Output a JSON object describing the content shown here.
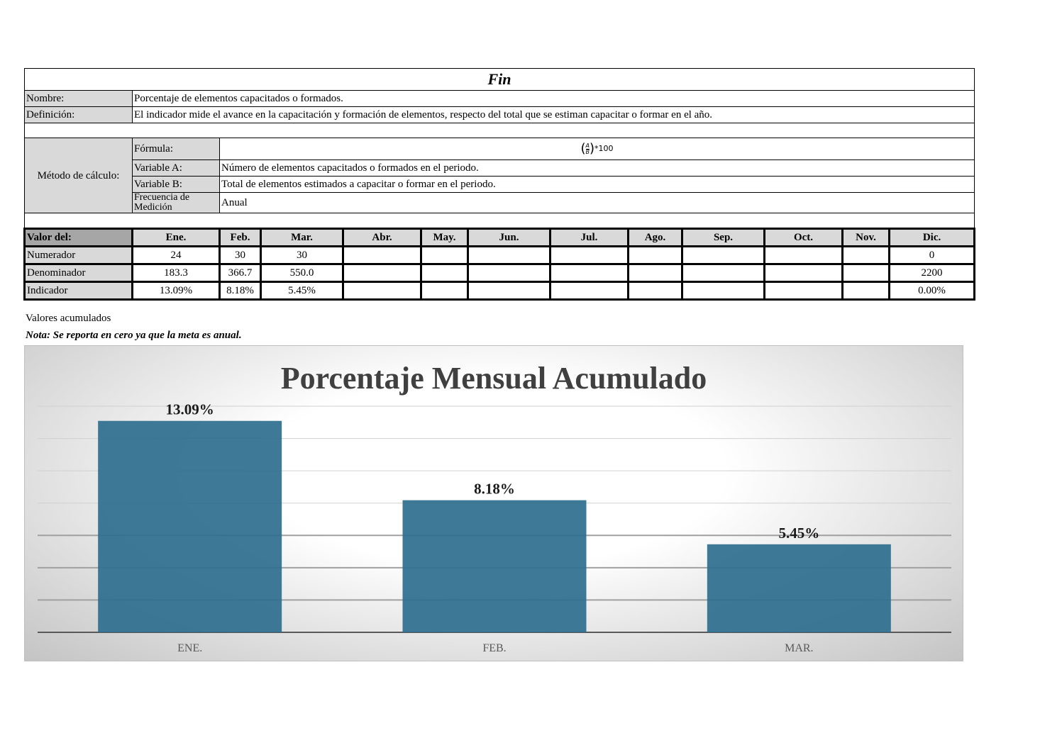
{
  "section_title": "Fin",
  "labels": {
    "nombre": "Nombre:",
    "definicion": "Definición:",
    "metodo": "Método de cálculo:",
    "formula": "Fórmula:",
    "variable_a": "Variable A:",
    "variable_b": "Variable B:",
    "frecuencia": "Frecuencia de Medición",
    "valor_del": "Valor del:"
  },
  "values": {
    "nombre": "Porcentaje de elementos capacitados o formados.",
    "definicion": "El indicador mide el avance en la capacitación y formación de elementos, respecto del total que se estiman capacitar o formar en el año.",
    "formula_num": "A",
    "formula_den": "B",
    "formula_suffix": "*100",
    "variable_a": "Número de elementos capacitados o formados en el periodo.",
    "variable_b": "Total de elementos estimados a capacitar o formar en el periodo.",
    "frecuencia": "Anual"
  },
  "months": [
    "Ene.",
    "Feb.",
    "Mar.",
    "Abr.",
    "May.",
    "Jun.",
    "Jul.",
    "Ago.",
    "Sep.",
    "Oct.",
    "Nov.",
    "Dic."
  ],
  "rows": [
    {
      "label": "Numerador",
      "cells": [
        "24",
        "30",
        "30",
        "",
        "",
        "",
        "",
        "",
        "",
        "",
        "",
        "0"
      ]
    },
    {
      "label": "Denominador",
      "cells": [
        "183.3",
        "366.7",
        "550.0",
        "",
        "",
        "",
        "",
        "",
        "",
        "",
        "",
        "2200"
      ]
    },
    {
      "label": "Indicador",
      "cells": [
        "13.09%",
        "8.18%",
        "5.45%",
        "",
        "",
        "",
        "",
        "",
        "",
        "",
        "",
        "0.00%"
      ]
    }
  ],
  "notes": {
    "acumulados": "Valores acumulados",
    "nota": "Nota: Se reporta en cero ya que la meta es anual."
  },
  "colors": {
    "bar": "#2e6f8e",
    "header_gray": "#d9d9d9",
    "dark_gray": "#a6a6a6"
  },
  "chart_data": {
    "type": "bar",
    "title": "Porcentaje Mensual Acumulado",
    "categories": [
      "ENE.",
      "FEB.",
      "MAR."
    ],
    "values": [
      13.09,
      8.18,
      5.45
    ],
    "data_labels": [
      "13.09%",
      "8.18%",
      "5.45%"
    ],
    "ylim": [
      0,
      14
    ],
    "grid": true,
    "legend": "none",
    "xlabel": "",
    "ylabel": ""
  }
}
